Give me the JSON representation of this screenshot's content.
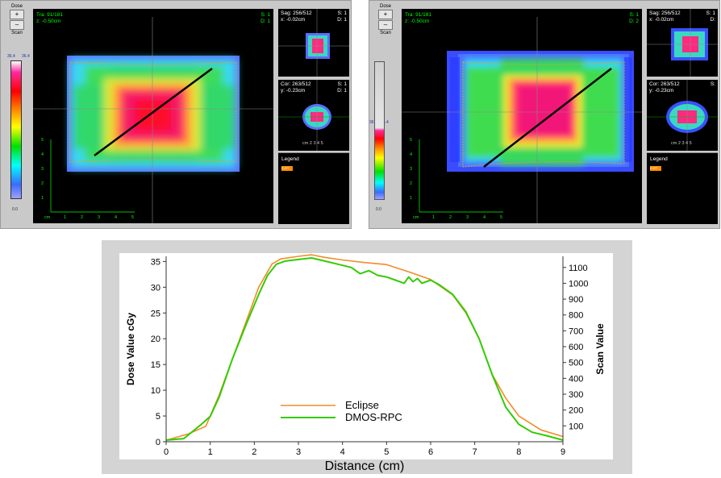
{
  "left_panel": {
    "dose_label": "Dose",
    "scan_label": "Scan",
    "colorbar_top": "36.4",
    "colorbar_top2": "36.4",
    "colorbar_bottom": "0.0",
    "main_view": {
      "title": "Tra: 91/181",
      "coord": "z: -0.50cm",
      "s": "S: 1",
      "d": "D: 1"
    },
    "sag_view": {
      "title": "Sag: 256/512",
      "coord": "x: -0.02cm",
      "s": "S: 1",
      "d": "D: 1"
    },
    "cor_view": {
      "title": "Cor: 263/512",
      "coord": "y: -0.23cm",
      "s": "S: 1",
      "d": "D: 1"
    },
    "legend_title": "Legend",
    "legend_chip": "E-RT",
    "scale_ticks": [
      "cm",
      "1",
      "2",
      "3",
      "4",
      "5"
    ],
    "scale_vticks": [
      "5",
      "4",
      "3",
      "2",
      "1"
    ],
    "mini_scale": "cm 2 3 4 5"
  },
  "right_panel": {
    "dose_label": "Dose",
    "scan_label": "Scan",
    "colorbar_top": "36.4",
    "colorbar_top2": "36.4",
    "colorbar_bottom": "0.0",
    "main_view": {
      "title": "Tra: 91/181",
      "coord": "z: -0.50cm",
      "s": "S: 1",
      "d": "D: 2"
    },
    "sag_view": {
      "title": "Sag: 256/512",
      "coord": "x: -0.02cm",
      "s": "S: 1",
      "d": "D:"
    },
    "cor_view": {
      "title": "Cor: 263/512",
      "coord": "y: -0.23cm",
      "s": "S:",
      "d": ""
    },
    "legend_title": "Legend",
    "legend_chip": "E-RT",
    "scale_ticks": [
      "cm",
      "1",
      "2",
      "3",
      "4",
      "5"
    ],
    "scale_vticks": [
      "5",
      "4",
      "3",
      "2",
      "1"
    ],
    "mini_scale": "cm 2 3 4 5"
  },
  "colors": {
    "eclipse": "#f28c28",
    "dmos": "#33cc00",
    "profile_line": "#000000",
    "crosshair": "#888888"
  },
  "chart_data": {
    "type": "line",
    "title": "",
    "xlabel": "Distance (cm)",
    "ylabel": "Dose Value  cGy",
    "ylabel_right": "Scan Value",
    "xlim": [
      0,
      9
    ],
    "ylim": [
      0,
      36
    ],
    "ylim_right": [
      0,
      1170
    ],
    "x_ticks": [
      "0",
      "1",
      "2",
      "3",
      "4",
      "5",
      "6",
      "7",
      "8",
      "9"
    ],
    "y_ticks": [
      "0",
      "5",
      "10",
      "15",
      "20",
      "25",
      "30",
      "35"
    ],
    "y_ticks_right": [
      "100",
      "200",
      "300",
      "400",
      "500",
      "600",
      "700",
      "800",
      "900",
      "1000",
      "1100"
    ],
    "legend_position": "lower-center",
    "series": [
      {
        "name": "Eclipse",
        "axis": "left",
        "x": [
          0,
          0.5,
          0.9,
          1.2,
          1.5,
          1.8,
          2.1,
          2.4,
          2.6,
          3.0,
          3.3,
          3.6,
          4.0,
          4.5,
          5.0,
          5.5,
          6.0,
          6.5,
          6.8,
          7.1,
          7.4,
          7.7,
          8.0,
          8.5,
          9.0
        ],
        "y": [
          0.3,
          1.5,
          3.0,
          9.0,
          16.0,
          23.0,
          30.0,
          34.5,
          35.5,
          36.0,
          36.3,
          35.8,
          35.3,
          34.8,
          34.4,
          33.0,
          31.5,
          28.5,
          25.0,
          20.0,
          13.0,
          8.5,
          5.0,
          2.3,
          1.0
        ]
      },
      {
        "name": "DMOS-RPC",
        "axis": "right",
        "x": [
          0,
          0.4,
          0.8,
          1.0,
          1.2,
          1.5,
          1.8,
          2.1,
          2.3,
          2.5,
          2.7,
          3.0,
          3.3,
          3.6,
          3.9,
          4.2,
          4.4,
          4.6,
          4.8,
          5.0,
          5.2,
          5.4,
          5.5,
          5.6,
          5.7,
          5.8,
          6.0,
          6.2,
          6.5,
          6.8,
          7.1,
          7.4,
          7.7,
          8.0,
          8.3,
          8.6,
          9.0
        ],
        "y": [
          10,
          20,
          110,
          160,
          280,
          520,
          730,
          930,
          1050,
          1120,
          1140,
          1150,
          1160,
          1140,
          1120,
          1100,
          1060,
          1080,
          1050,
          1040,
          1020,
          1000,
          1040,
          1010,
          1030,
          1000,
          1020,
          990,
          930,
          820,
          650,
          420,
          220,
          110,
          60,
          40,
          10
        ]
      }
    ]
  }
}
